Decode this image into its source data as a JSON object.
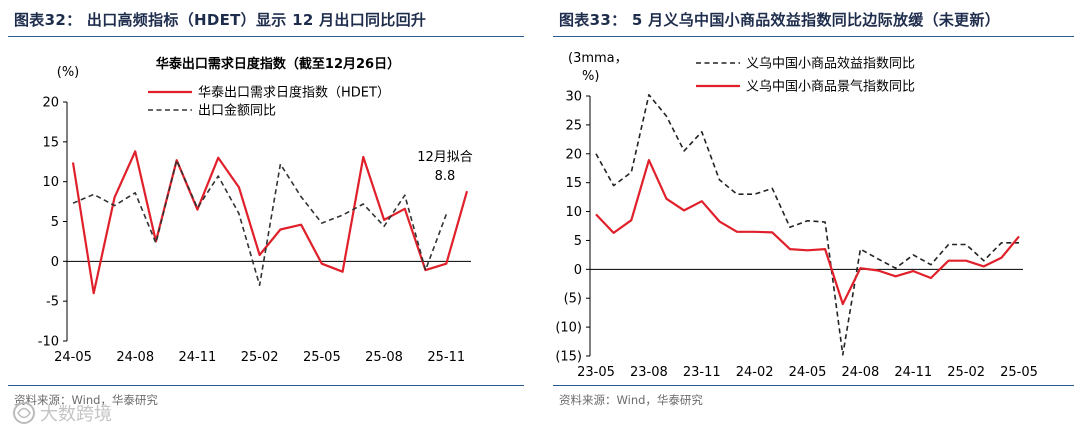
{
  "panels": [
    {
      "figure_title": "图表32： 出口高频指标（HDET）显示 12 月出口同比回升",
      "source": "资料来源：Wind，华泰研究"
    },
    {
      "figure_title": "图表33： 5 月义乌中国小商品效益指数同比边际放缓（未更新）",
      "source": "资料来源：Wind，华泰研究"
    }
  ],
  "watermark": "大数跨境",
  "chart_data": [
    {
      "type": "line",
      "title": "华泰出口需求日度指数（截至12月26日）",
      "ylabel": "(%)",
      "ylim": [
        -10,
        20
      ],
      "yticks": [
        "-10",
        "-5",
        "0",
        "5",
        "10",
        "15",
        "20"
      ],
      "ytick_values": [
        -10,
        -5,
        0,
        5,
        10,
        15,
        20
      ],
      "xticks": [
        "24-05",
        "24-08",
        "24-11",
        "25-02",
        "25-05",
        "25-08",
        "25-11"
      ],
      "xtick_index": [
        0,
        3,
        6,
        9,
        12,
        15,
        18
      ],
      "x": [
        "24-05",
        "24-06",
        "24-07",
        "24-08",
        "24-09",
        "24-10",
        "24-11",
        "24-12",
        "25-01",
        "25-02",
        "25-03",
        "25-04",
        "25-05",
        "25-06",
        "25-07",
        "25-08",
        "25-09",
        "25-10",
        "25-11",
        "25-12"
      ],
      "legend_position": "top",
      "grid": false,
      "series": [
        {
          "name": "华泰出口需求日度指数（HDET）",
          "color": "#e0202a",
          "dash": false,
          "values": [
            12.4,
            -4.0,
            8.0,
            13.8,
            2.5,
            12.7,
            6.5,
            13.0,
            9.3,
            0.8,
            4.0,
            4.6,
            -0.3,
            -1.3,
            13.1,
            5.2,
            6.6,
            -1.1,
            -0.3,
            8.8
          ]
        },
        {
          "name": "出口金额同比",
          "color": "#333333",
          "dash": true,
          "values": [
            7.3,
            8.4,
            7.0,
            8.6,
            2.3,
            12.7,
            6.7,
            10.7,
            6.0,
            -3.0,
            12.2,
            8.1,
            4.8,
            5.8,
            7.2,
            4.4,
            8.3,
            -1.1,
            5.9,
            null
          ]
        }
      ],
      "annotation": {
        "text_line1": "12月拟合",
        "text_line2": "8.8",
        "x_index": 19,
        "y": 8.8
      }
    },
    {
      "type": "line",
      "ylabel_line1": "(3mma，",
      "ylabel_line2": "%)",
      "ylim": [
        -15,
        30
      ],
      "yticks": [
        "(15)",
        "(10)",
        "(5)",
        "0",
        "5",
        "10",
        "15",
        "20",
        "25",
        "30"
      ],
      "ytick_values": [
        -15,
        -10,
        -5,
        0,
        5,
        10,
        15,
        20,
        25,
        30
      ],
      "xticks": [
        "23-05",
        "23-08",
        "23-11",
        "24-02",
        "24-05",
        "24-08",
        "24-11",
        "25-02",
        "25-05"
      ],
      "xtick_index": [
        0,
        3,
        6,
        9,
        12,
        15,
        18,
        21,
        24
      ],
      "x": [
        "23-05",
        "23-06",
        "23-07",
        "23-08",
        "23-09",
        "23-10",
        "23-11",
        "23-12",
        "24-01",
        "24-02",
        "24-03",
        "24-04",
        "24-05",
        "24-06",
        "24-07",
        "24-08",
        "24-09",
        "24-10",
        "24-11",
        "24-12",
        "25-01",
        "25-02",
        "25-03",
        "25-04",
        "25-05"
      ],
      "legend_position": "top",
      "grid": false,
      "series": [
        {
          "name": "义乌中国小商品效益指数同比",
          "color": "#222222",
          "dash": true,
          "values": [
            20.0,
            14.5,
            16.8,
            30.2,
            26.5,
            20.5,
            23.8,
            15.5,
            13.0,
            13.0,
            14.0,
            7.3,
            8.4,
            8.2,
            -14.8,
            3.5,
            1.8,
            0.2,
            2.5,
            0.8,
            4.3,
            4.3,
            1.5,
            4.6,
            4.6
          ]
        },
        {
          "name": "义乌中国小商品景气指数同比",
          "color": "#e0202a",
          "dash": false,
          "values": [
            9.5,
            6.3,
            8.5,
            18.9,
            12.2,
            10.2,
            11.8,
            8.3,
            6.5,
            6.5,
            6.4,
            3.5,
            3.3,
            3.5,
            -6.0,
            0.2,
            -0.2,
            -1.2,
            -0.3,
            -1.5,
            1.5,
            1.5,
            0.5,
            2.0,
            5.7
          ]
        }
      ]
    }
  ]
}
